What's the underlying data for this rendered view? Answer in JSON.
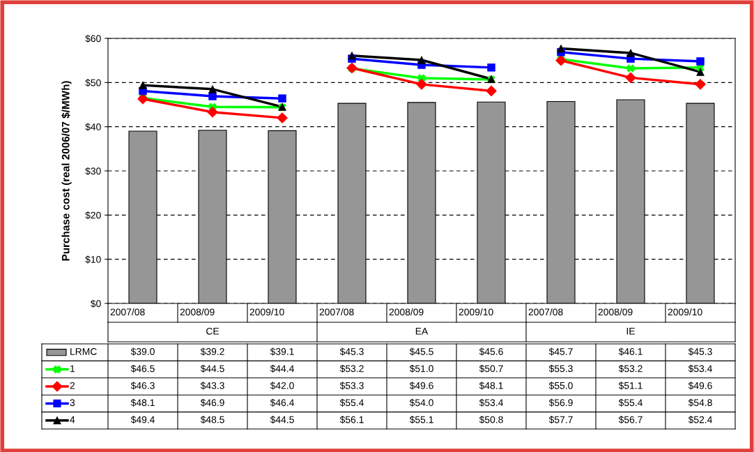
{
  "chart_data": {
    "type": "bar",
    "ylabel": "Purchase cost (real 2006/07 $/MWh)",
    "categories": [
      "2007/08",
      "2008/09",
      "2009/10",
      "2007/08",
      "2008/09",
      "2009/10",
      "2007/08",
      "2008/09",
      "2009/10"
    ],
    "annotations": [
      "CE",
      "EA",
      "IE"
    ],
    "series": [
      {
        "name": "LRMC",
        "color": "#969696",
        "values": [
          39.0,
          39.2,
          39.1,
          45.3,
          45.5,
          45.6,
          45.7,
          46.1,
          45.3
        ],
        "value_labels": [
          "$39.0",
          "$39.2",
          "$39.1",
          "$45.3",
          "$45.5",
          "$45.6",
          "$45.7",
          "$46.1",
          "$45.3"
        ]
      },
      {
        "name": "1",
        "type": "line",
        "color": "#00ff00",
        "marker": "cross",
        "values": [
          46.5,
          44.5,
          44.4,
          53.2,
          51.0,
          50.7,
          55.3,
          53.2,
          53.4
        ],
        "value_labels": [
          "$46.5",
          "$44.5",
          "$44.4",
          "$53.2",
          "$51.0",
          "$50.7",
          "$55.3",
          "$53.2",
          "$53.4"
        ]
      },
      {
        "name": "2",
        "type": "line",
        "color": "#ff0000",
        "marker": "diamond",
        "values": [
          46.3,
          43.3,
          42.0,
          53.3,
          49.6,
          48.1,
          55.0,
          51.1,
          49.6
        ],
        "value_labels": [
          "$46.3",
          "$43.3",
          "$42.0",
          "$53.3",
          "$49.6",
          "$48.1",
          "$55.0",
          "$51.1",
          "$49.6"
        ]
      },
      {
        "name": "3",
        "type": "line",
        "color": "#0000ff",
        "marker": "square",
        "values": [
          48.1,
          46.9,
          46.4,
          55.4,
          54.0,
          53.4,
          56.9,
          55.4,
          54.8
        ],
        "value_labels": [
          "$48.1",
          "$46.9",
          "$46.4",
          "$55.4",
          "$54.0",
          "$53.4",
          "$56.9",
          "$55.4",
          "$54.8"
        ]
      },
      {
        "name": "4",
        "type": "line",
        "color": "#000000",
        "marker": "triangle",
        "values": [
          49.4,
          48.5,
          44.5,
          56.1,
          55.1,
          50.8,
          57.7,
          56.7,
          52.4
        ],
        "value_labels": [
          "$49.4",
          "$48.5",
          "$44.5",
          "$56.1",
          "$55.1",
          "$50.8",
          "$57.7",
          "$56.7",
          "$52.4"
        ]
      }
    ],
    "ylim": [
      0,
      60
    ],
    "yticks": [
      {
        "value": 0,
        "label": "$0"
      },
      {
        "value": 10,
        "label": "$10"
      },
      {
        "value": 20,
        "label": "$20"
      },
      {
        "value": 30,
        "label": "$30"
      },
      {
        "value": 40,
        "label": "$40"
      },
      {
        "value": 50,
        "label": "$50"
      },
      {
        "value": 60,
        "label": "$60"
      }
    ],
    "grid": "y",
    "legend": "bottom left"
  }
}
